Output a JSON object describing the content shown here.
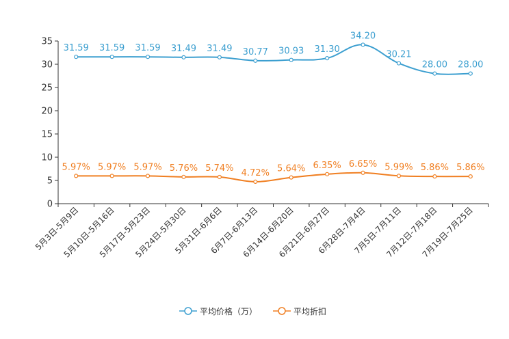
{
  "chart_data": {
    "type": "line",
    "title": "",
    "xlabel": "",
    "ylabel": "",
    "ylim": [
      0,
      35
    ],
    "yticks": [
      0,
      5,
      10,
      15,
      20,
      25,
      30,
      35
    ],
    "categories": [
      "5月3日-5月9日",
      "5月10日-5月16日",
      "5月17日-5月23日",
      "5月24日-5月30日",
      "5月31日-6月6日",
      "6月7日-6月13日",
      "6月14日-6月20日",
      "6月21日-6月27日",
      "6月28日-7月4日",
      "7月5日-7月11日",
      "7月12日-7月18日",
      "7月19日-7月25日"
    ],
    "series": [
      {
        "name": "平均价格（万）",
        "color": "#3c9fd0",
        "values": [
          31.59,
          31.59,
          31.59,
          31.49,
          31.49,
          30.77,
          30.93,
          31.3,
          34.2,
          30.21,
          28.0,
          28.0
        ],
        "labels": [
          "31.59",
          "31.59",
          "31.59",
          "31.49",
          "31.49",
          "30.77",
          "30.93",
          "31.30",
          "34.20",
          "30.21",
          "28.00",
          "28.00"
        ]
      },
      {
        "name": "平均折扣",
        "color": "#f07f22",
        "values": [
          5.97,
          5.97,
          5.97,
          5.76,
          5.74,
          4.72,
          5.64,
          6.35,
          6.65,
          5.99,
          5.86,
          5.86
        ],
        "labels": [
          "5.97%",
          "5.97%",
          "5.97%",
          "5.76%",
          "5.74%",
          "4.72%",
          "5.64%",
          "6.35%",
          "6.65%",
          "5.99%",
          "5.86%",
          "5.86%"
        ]
      }
    ],
    "legend": {
      "position": "bottom"
    },
    "grid": false
  }
}
